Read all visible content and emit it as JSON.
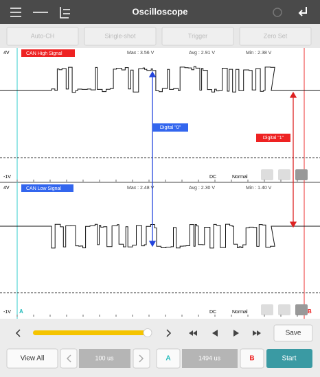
{
  "header": {
    "title": "Oscilloscope"
  },
  "toolbar": [
    "Auto-CH",
    "Single-shot",
    "Trigger",
    "Zero Set"
  ],
  "channels": [
    {
      "top": "4V",
      "name": "CAN High Signal",
      "max": "Max : 3.56 V",
      "avg": "Avg : 2.91 V",
      "min": "Min : 2.38 V",
      "bottom": "-1V",
      "coupling": "DC",
      "mode": "Normal"
    },
    {
      "top": "4V",
      "name": "CAN Low Signal",
      "max": "Max : 2.48 V",
      "avg": "Avg : 2.30 V",
      "min": "Min : 1.40 V",
      "bottom": "-1V",
      "coupling": "DC",
      "mode": "Normal",
      "cursor_a": "A",
      "cursor_b": "B"
    }
  ],
  "annotations": [
    "Digital \"0\"",
    "Digital \"1\""
  ],
  "controls": {
    "save": "Save",
    "view_all": "View All",
    "time_div": "100 us",
    "cursor_a": "A",
    "cursor_delta": "1494 us",
    "cursor_b": "B",
    "start": "Start"
  }
}
